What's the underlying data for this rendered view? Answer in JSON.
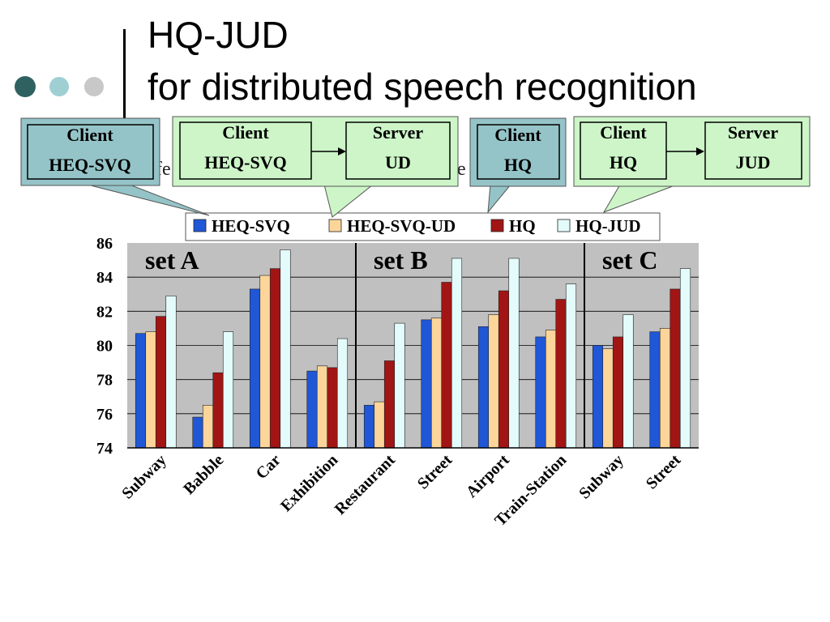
{
  "slide": {
    "title_line1": "HQ-JUD",
    "title_line2": "for distributed speech recognition",
    "partial_text_left": "fe",
    "partial_text_right": "e"
  },
  "callouts": [
    {
      "style": "blue",
      "lines": [
        "Client",
        "HEQ-SVQ"
      ]
    },
    {
      "style": "green",
      "left_lines": [
        "Client",
        "HEQ-SVQ"
      ],
      "right_lines": [
        "Server",
        "UD"
      ]
    },
    {
      "style": "blue",
      "lines": [
        "Client",
        "HQ"
      ]
    },
    {
      "style": "green",
      "left_lines": [
        "Client",
        "HQ"
      ],
      "right_lines": [
        "Server",
        "JUD"
      ]
    }
  ],
  "colors": {
    "callout_blue_fill": "#95c4c8",
    "callout_green_fill": "#cdf5c8",
    "plot_bg": "#c0c0c0",
    "title_dot_1": "#2f6161",
    "title_dot_2": "#9fcfd3",
    "title_dot_3": "#c8c8c8"
  },
  "chart_data": {
    "type": "bar",
    "categories": [
      "Subway",
      "Babble",
      "Car",
      "Exhibition",
      "Restaurant",
      "Street",
      "Airport",
      "Train-Station",
      "Subway",
      "Street"
    ],
    "groups": [
      {
        "label": "set A",
        "start": 0,
        "end": 3
      },
      {
        "label": "set B",
        "start": 4,
        "end": 7
      },
      {
        "label": "set C",
        "start": 8,
        "end": 9
      }
    ],
    "series": [
      {
        "name": "HEQ-SVQ",
        "color": "#1f57d6",
        "values": [
          80.7,
          75.8,
          83.3,
          78.5,
          76.5,
          81.5,
          81.1,
          80.5,
          80.0,
          80.8
        ]
      },
      {
        "name": "HEQ-SVQ-UD",
        "color": "#fbd59a",
        "values": [
          80.8,
          76.5,
          84.1,
          78.8,
          76.7,
          81.6,
          81.8,
          80.9,
          79.8,
          81.0
        ]
      },
      {
        "name": "HQ",
        "color": "#a11515",
        "values": [
          81.7,
          78.4,
          84.5,
          78.7,
          79.1,
          83.7,
          83.2,
          82.7,
          80.5,
          83.3
        ]
      },
      {
        "name": "HQ-JUD",
        "color": "#e4fbfb",
        "values": [
          82.9,
          80.8,
          85.6,
          80.4,
          81.3,
          85.1,
          85.1,
          83.6,
          81.8,
          84.5
        ]
      }
    ],
    "yticks": [
      "74",
      "76",
      "78",
      "80",
      "82",
      "84",
      "86"
    ],
    "ylim": [
      74,
      86
    ],
    "grid": true,
    "legend_position": "top"
  }
}
